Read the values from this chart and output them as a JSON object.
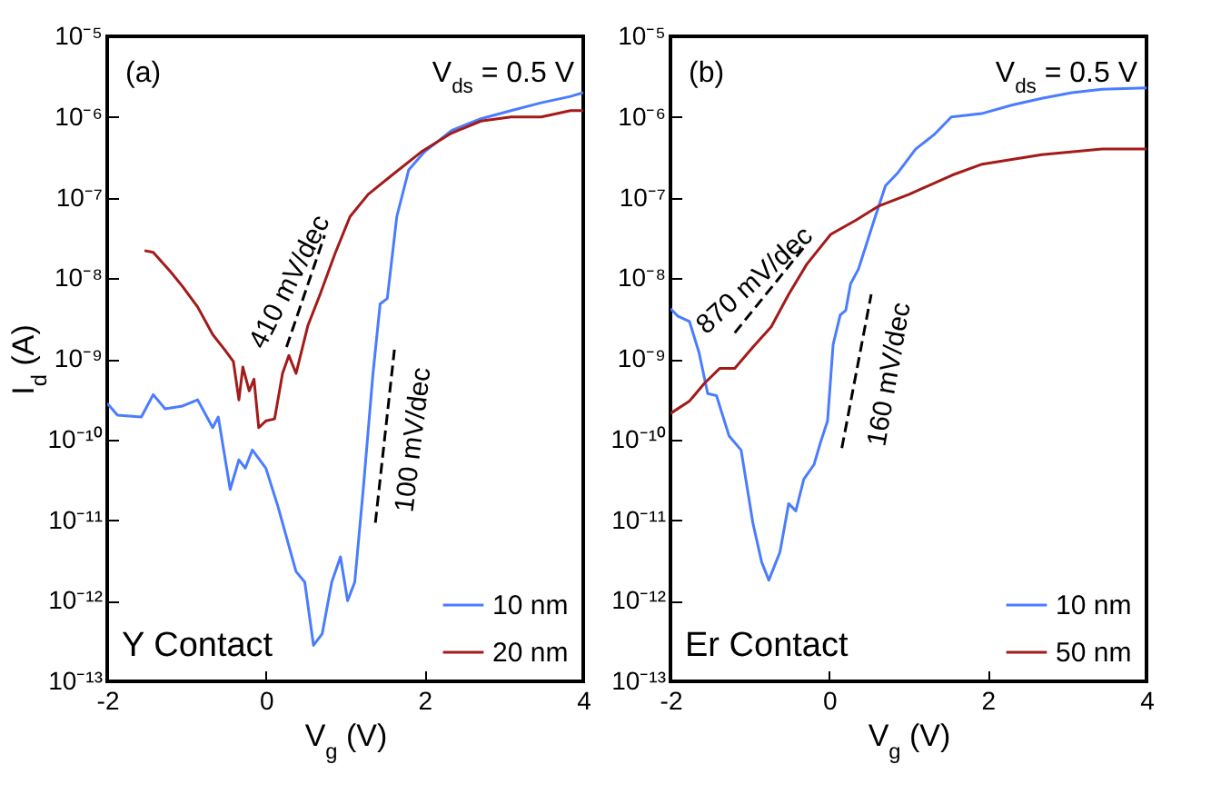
{
  "chart_data": [
    {
      "type": "line",
      "xlabel": "V$_{g}$ (V)",
      "ylabel": "I$_{d}$ (A)",
      "log": "y",
      "grid": false,
      "legend": "bottom right",
      "xlim": [
        -2,
        4
      ],
      "xticks": [
        -2,
        0,
        2,
        4
      ],
      "ylim": [
        1e-13,
        1e-05
      ],
      "yticks": [
        {
          "value": 1e-13,
          "label": "10⁻¹³"
        },
        {
          "value": 1e-12,
          "label": "10⁻¹²"
        },
        {
          "value": 1e-11,
          "label": "10⁻¹¹"
        },
        {
          "value": 1e-10,
          "label": "10⁻¹⁰"
        },
        {
          "value": 1e-09,
          "label": "10⁻⁹"
        },
        {
          "value": 1e-08,
          "label": "10⁻⁸"
        },
        {
          "value": 1e-07,
          "label": "10⁻⁷"
        },
        {
          "value": 1e-06,
          "label": "10⁻⁶"
        },
        {
          "value": 1e-05,
          "label": "10⁻⁵"
        }
      ],
      "annotations": [
        "(a)",
        "V$_{ds}$ = 0.5 V",
        "Y Contact",
        "410 mV/dec",
        "100 mV/dec"
      ],
      "series": [
        {
          "name": "10 nm",
          "color": "#4a7cff",
          "x": [
            -2,
            -1.87,
            -1.57,
            -1.42,
            -1.27,
            -1.05,
            -0.86,
            -0.67,
            -0.6,
            -0.45,
            -0.34,
            -0.26,
            -0.17,
            0,
            0.15,
            0.38,
            0.49,
            0.6,
            0.71,
            0.83,
            0.94,
            1.03,
            1.12,
            1.23,
            1.35,
            1.44,
            1.53,
            1.65,
            1.8,
            2.0,
            2.34,
            2.71,
            3.09,
            3.47,
            3.84,
            4.0
          ],
          "values": [
            2.8e-10,
            2e-10,
            1.9e-10,
            3.6e-10,
            2.4e-10,
            2.6e-10,
            3.1e-10,
            1.4e-10,
            1.9e-10,
            2.4e-11,
            5.6e-11,
            4.4e-11,
            7.4e-11,
            4.4e-11,
            1.5e-11,
            2.3e-12,
            1.7e-12,
            2.8e-13,
            3.9e-13,
            1.7e-12,
            3.5e-12,
            1e-12,
            1.7e-12,
            2.6e-11,
            6.6e-10,
            4.8e-09,
            5.6e-09,
            5.8e-08,
            2.2e-07,
            3.7e-07,
            6.8e-07,
            9.5e-07,
            1.2e-06,
            1.5e-06,
            1.8e-06,
            2e-06
          ]
        },
        {
          "name": "20 nm",
          "color": "#a31a1a",
          "x": [
            -1.53,
            -1.42,
            -1.2,
            -1.05,
            -0.86,
            -0.67,
            -0.52,
            -0.41,
            -0.34,
            -0.29,
            -0.21,
            -0.15,
            -0.09,
            0,
            0.11,
            0.21,
            0.29,
            0.38,
            0.53,
            0.68,
            0.87,
            1.06,
            1.29,
            1.59,
            1.96,
            2.34,
            2.71,
            3.09,
            3.47,
            3.84,
            4.0
          ],
          "values": [
            2.2e-08,
            2.1e-08,
            1.2e-08,
            7.9e-09,
            4.4e-09,
            2e-09,
            1.3e-09,
            9.3e-10,
            3.1e-10,
            7.9e-10,
            4e-10,
            5.6e-10,
            1.4e-10,
            1.7e-10,
            1.8e-10,
            6.6e-10,
            1.1e-09,
            6.6e-10,
            2.6e-09,
            6.2e-09,
            2e-08,
            5.8e-08,
            1.1e-07,
            1.9e-07,
            3.7e-07,
            6.3e-07,
            8.9e-07,
            1e-06,
            1e-06,
            1.2e-06,
            1.2e-06
          ]
        },
        {
          "color": "#000000",
          "line_style": "dashed",
          "x": [
            0.26,
            0.74
          ],
          "values": [
            1.4e-09,
            3.4e-08
          ]
        },
        {
          "color": "#000000",
          "line_style": "dashed",
          "x": [
            1.38,
            1.62
          ],
          "values": [
            9.3e-12,
            1.3e-09
          ]
        }
      ]
    },
    {
      "type": "line",
      "xlabel": "V$_{g}$ (V)",
      "log": "y",
      "grid": false,
      "legend": "bottom right",
      "xlim": [
        -2,
        4
      ],
      "xticks": [
        -2,
        0,
        2,
        4
      ],
      "ylim": [
        1e-13,
        1e-05
      ],
      "yticks": [
        {
          "value": 1e-13,
          "label": "10⁻¹³"
        },
        {
          "value": 1e-12,
          "label": "10⁻¹²"
        },
        {
          "value": 1e-11,
          "label": "10⁻¹¹"
        },
        {
          "value": 1e-10,
          "label": "10⁻¹⁰"
        },
        {
          "value": 1e-09,
          "label": "10⁻⁹"
        },
        {
          "value": 1e-08,
          "label": "10⁻⁸"
        },
        {
          "value": 1e-07,
          "label": "10⁻⁷"
        },
        {
          "value": 1e-06,
          "label": "10⁻⁶"
        },
        {
          "value": 1e-05,
          "label": "10⁻⁵"
        }
      ],
      "annotations": [
        "(b)",
        "V$_{ds}$ = 0.5 V",
        "Er Contact",
        "870 mV/dec",
        "160 mV/dec"
      ],
      "series": [
        {
          "name": "10 nm",
          "color": "#4a7cff",
          "x": [
            -2,
            -1.91,
            -1.76,
            -1.64,
            -1.53,
            -1.42,
            -1.26,
            -1.11,
            -0.96,
            -0.85,
            -0.76,
            -0.62,
            -0.51,
            -0.42,
            -0.32,
            -0.19,
            -0.11,
            -0.02,
            0.05,
            0.14,
            0.21,
            0.27,
            0.37,
            0.56,
            0.71,
            0.86,
            1.09,
            1.32,
            1.54,
            1.92,
            2.3,
            2.68,
            3.06,
            3.44,
            4.0
          ],
          "values": [
            4.2e-09,
            3.4e-09,
            2.9e-09,
            1.2e-09,
            3.7e-10,
            3.5e-10,
            1.1e-10,
            7.4e-11,
            9.1e-12,
            3e-12,
            1.8e-12,
            4e-12,
            1.6e-11,
            1.3e-11,
            3.2e-11,
            4.9e-11,
            9.1e-11,
            1.7e-10,
            1.5e-09,
            3.5e-09,
            4e-09,
            8.5e-09,
            1.3e-08,
            5e-08,
            1.4e-07,
            2e-07,
            4e-07,
            6e-07,
            1e-06,
            1.1e-06,
            1.4e-06,
            1.7e-06,
            2e-06,
            2.2e-06,
            2.3e-06
          ]
        },
        {
          "name": "50 nm",
          "color": "#a31a1a",
          "x": [
            -2,
            -1.76,
            -1.57,
            -1.38,
            -1.19,
            -0.96,
            -0.73,
            -0.51,
            -0.28,
            0.02,
            0.33,
            0.63,
            1.01,
            1.55,
            1.93,
            2.68,
            3.44,
            4.0
          ],
          "values": [
            2.1e-10,
            3e-10,
            5e-10,
            7.6e-10,
            7.6e-10,
            1.4e-09,
            2.5e-09,
            6.3e-09,
            1.5e-08,
            3.5e-08,
            5.2e-08,
            7.9e-08,
            1.1e-07,
            1.9e-07,
            2.6e-07,
            3.4e-07,
            4e-07,
            4e-07
          ]
        },
        {
          "color": "#000000",
          "line_style": "dashed",
          "x": [
            -1.19,
            -0.32
          ],
          "values": [
            2.1e-09,
            2.4e-08
          ]
        },
        {
          "color": "#000000",
          "line_style": "dashed",
          "x": [
            0.16,
            0.53
          ],
          "values": [
            7.8e-11,
            6.3e-09
          ]
        }
      ]
    }
  ]
}
